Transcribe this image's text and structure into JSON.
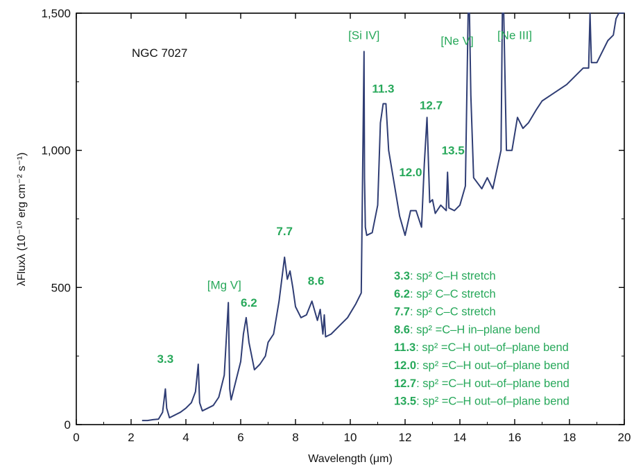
{
  "chart_data": {
    "type": "line",
    "object_label": "NGC 7027",
    "xlabel": "Wavelength (μm)",
    "ylabel": "λFluxλ (10⁻¹⁰ erg cm⁻² s⁻¹)",
    "xlim": [
      0,
      20
    ],
    "ylim": [
      0,
      1500
    ],
    "x_ticks": [
      0,
      2,
      4,
      6,
      8,
      10,
      12,
      14,
      16,
      18,
      20
    ],
    "x_tick_labels": [
      "0",
      "2",
      "4",
      "6",
      "8",
      "10",
      "12",
      "14",
      "16",
      "18",
      "20"
    ],
    "y_ticks": [
      0,
      500,
      1000,
      1500
    ],
    "y_tick_labels": [
      "0",
      "500",
      "1,000",
      "1,500"
    ],
    "grid": false,
    "colors": {
      "spectrum": "#2f3d74",
      "annotation": "#27a85a",
      "axis": "#000000"
    },
    "series": [
      {
        "x": [
          2.4,
          2.6,
          2.8,
          3.0,
          3.15,
          3.25,
          3.3,
          3.4,
          3.6,
          3.8,
          4.0,
          4.2,
          4.35,
          4.45,
          4.5,
          4.6,
          4.8,
          5.0,
          5.2,
          5.4,
          5.55,
          5.6,
          5.65,
          5.8,
          6.0,
          6.1,
          6.2,
          6.3,
          6.5,
          6.7,
          6.9,
          7.0,
          7.2,
          7.4,
          7.6,
          7.7,
          7.8,
          7.9,
          8.0,
          8.2,
          8.4,
          8.6,
          8.8,
          8.9,
          9.0,
          9.05,
          9.1,
          9.3,
          9.6,
          9.9,
          10.2,
          10.4,
          10.5,
          10.52,
          10.55,
          10.6,
          10.8,
          11.0,
          11.1,
          11.2,
          11.3,
          11.4,
          11.6,
          11.8,
          12.0,
          12.2,
          12.4,
          12.6,
          12.7,
          12.8,
          12.9,
          13.0,
          13.1,
          13.3,
          13.5,
          13.55,
          13.6,
          13.8,
          14.0,
          14.2,
          14.3,
          14.35,
          14.4,
          14.5,
          14.8,
          15.0,
          15.2,
          15.5,
          15.55,
          15.6,
          15.7,
          15.9,
          16.1,
          16.3,
          16.5,
          16.8,
          17.0,
          17.3,
          17.6,
          17.9,
          18.2,
          18.5,
          18.7,
          18.75,
          18.8,
          19.0,
          19.2,
          19.4,
          19.6,
          19.7,
          19.8,
          20.0
        ],
        "y": [
          15,
          15,
          18,
          20,
          45,
          130,
          60,
          25,
          35,
          45,
          60,
          80,
          120,
          220,
          80,
          50,
          60,
          70,
          100,
          180,
          445,
          130,
          90,
          150,
          230,
          330,
          390,
          300,
          200,
          220,
          250,
          300,
          330,
          450,
          610,
          530,
          560,
          500,
          430,
          390,
          400,
          450,
          380,
          420,
          330,
          400,
          320,
          330,
          360,
          390,
          440,
          480,
          1360,
          900,
          720,
          690,
          700,
          800,
          1100,
          1170,
          1170,
          1000,
          880,
          760,
          690,
          780,
          780,
          720,
          950,
          1120,
          810,
          820,
          770,
          800,
          780,
          920,
          790,
          780,
          800,
          870,
          1500,
          1500,
          1200,
          900,
          860,
          900,
          860,
          1000,
          1500,
          1500,
          1000,
          1000,
          1120,
          1080,
          1100,
          1150,
          1180,
          1200,
          1220,
          1240,
          1270,
          1300,
          1300,
          1500,
          1320,
          1320,
          1360,
          1400,
          1420,
          1480,
          1500,
          1500
        ],
        "line": true
      }
    ],
    "ion_labels": [
      {
        "text": "[Si IV]",
        "x": 10.5,
        "y": 1405
      },
      {
        "text": "[Ne V]",
        "x": 13.9,
        "y": 1385
      },
      {
        "text": "[Ne III]",
        "x": 16.0,
        "y": 1405
      },
      {
        "text": "[Mg V]",
        "x": 5.4,
        "y": 495
      }
    ],
    "band_labels": [
      {
        "text": "3.3",
        "x": 3.25,
        "y": 225
      },
      {
        "text": "6.2",
        "x": 6.3,
        "y": 430
      },
      {
        "text": "7.7",
        "x": 7.6,
        "y": 690
      },
      {
        "text": "8.6",
        "x": 8.75,
        "y": 510
      },
      {
        "text": "11.3",
        "x": 11.2,
        "y": 1210
      },
      {
        "text": "12.0",
        "x": 12.2,
        "y": 905
      },
      {
        "text": "12.7",
        "x": 12.95,
        "y": 1150
      },
      {
        "text": "13.5",
        "x": 13.75,
        "y": 985
      }
    ],
    "legend": {
      "position": "lower-right",
      "entries": [
        {
          "band": "3.3",
          "text": ": sp² C–H stretch"
        },
        {
          "band": "6.2",
          "text": ": sp² C–C stretch"
        },
        {
          "band": "7.7",
          "text": ": sp² C–C stretch"
        },
        {
          "band": "8.6",
          "text": ": sp² =C–H in–plane bend"
        },
        {
          "band": "11.3",
          "text": ": sp² =C–H out–of–plane bend"
        },
        {
          "band": "12.0",
          "text": ": sp² =C–H out–of–plane bend"
        },
        {
          "band": "12.7",
          "text": ": sp² =C–H out–of–plane bend"
        },
        {
          "band": "13.5",
          "text": ": sp² =C–H out–of–plane bend"
        }
      ]
    }
  }
}
